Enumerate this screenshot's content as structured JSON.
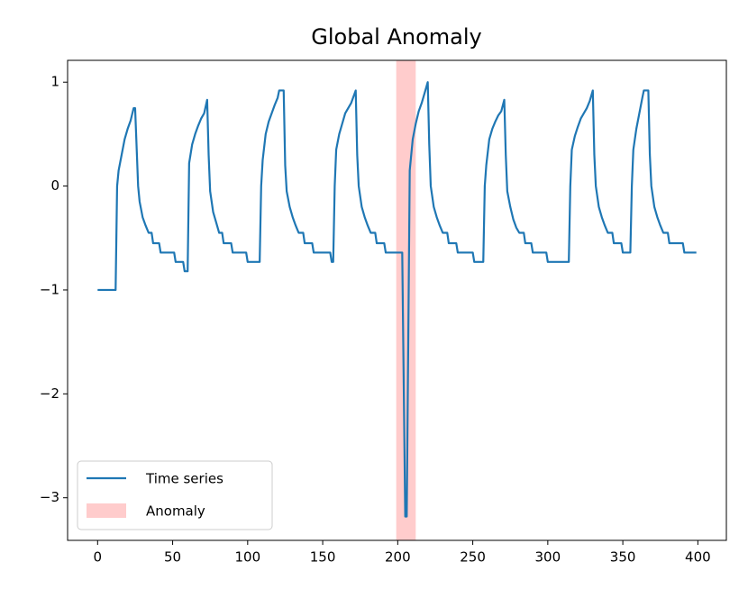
{
  "chart_data": {
    "type": "line",
    "title": "Global Anomaly",
    "x": [
      0,
      12,
      13,
      14,
      16,
      18,
      20,
      22,
      24,
      25,
      27,
      28,
      30,
      32,
      34,
      36,
      37,
      41,
      42,
      51,
      52,
      57,
      58,
      60,
      61,
      63,
      65,
      67,
      69,
      71,
      73,
      74,
      75,
      77,
      79,
      81,
      83,
      84,
      89,
      90,
      99,
      100,
      108,
      109,
      110,
      112,
      114,
      116,
      118,
      120,
      121,
      124,
      125,
      126,
      128,
      130,
      132,
      134,
      137,
      138,
      143,
      144,
      155,
      156,
      157,
      158,
      159,
      161,
      163,
      165,
      167,
      169,
      172,
      173,
      174,
      176,
      178,
      180,
      182,
      185,
      186,
      191,
      192,
      203,
      205,
      206,
      208,
      210,
      212,
      214,
      216,
      218,
      220,
      221,
      222,
      224,
      226,
      228,
      230,
      233,
      234,
      239,
      240,
      250,
      251,
      257,
      258,
      259,
      261,
      263,
      265,
      267,
      269,
      271,
      272,
      273,
      275,
      277,
      279,
      281,
      284,
      285,
      289,
      290,
      299,
      300,
      314,
      315,
      316,
      318,
      320,
      322,
      324,
      326,
      328,
      330,
      331,
      332,
      334,
      336,
      338,
      340,
      343,
      344,
      349,
      350,
      355,
      356,
      357,
      359,
      361,
      363,
      364,
      367,
      368,
      369,
      371,
      373,
      375,
      377,
      380,
      381,
      390,
      391,
      399
    ],
    "series": [
      {
        "name": "Time series",
        "color": "#1f77b4",
        "values": [
          -1,
          -1,
          0,
          0.15,
          0.3,
          0.45,
          0.55,
          0.63,
          0.75,
          0.75,
          0,
          -0.15,
          -0.3,
          -0.38,
          -0.45,
          -0.45,
          -0.55,
          -0.55,
          -0.64,
          -0.64,
          -0.73,
          -0.73,
          -0.82,
          -0.82,
          0.22,
          0.4,
          0.5,
          0.58,
          0.65,
          0.7,
          0.83,
          0.3,
          -0.05,
          -0.25,
          -0.35,
          -0.45,
          -0.45,
          -0.55,
          -0.55,
          -0.64,
          -0.64,
          -0.73,
          -0.73,
          0,
          0.25,
          0.5,
          0.62,
          0.7,
          0.78,
          0.85,
          0.92,
          0.92,
          0.2,
          -0.05,
          -0.2,
          -0.3,
          -0.38,
          -0.45,
          -0.45,
          -0.55,
          -0.55,
          -0.64,
          -0.64,
          -0.73,
          -0.73,
          0,
          0.35,
          0.5,
          0.6,
          0.7,
          0.75,
          0.8,
          0.92,
          0.3,
          0,
          -0.2,
          -0.3,
          -0.38,
          -0.45,
          -0.45,
          -0.55,
          -0.55,
          -0.64,
          -0.64,
          -3.18,
          -3.18,
          0.15,
          0.45,
          0.6,
          0.72,
          0.8,
          0.9,
          1.0,
          0.4,
          0,
          -0.2,
          -0.3,
          -0.38,
          -0.45,
          -0.45,
          -0.55,
          -0.55,
          -0.64,
          -0.64,
          -0.73,
          -0.73,
          0,
          0.2,
          0.45,
          0.55,
          0.62,
          0.68,
          0.72,
          0.83,
          0.3,
          -0.05,
          -0.2,
          -0.32,
          -0.4,
          -0.45,
          -0.45,
          -0.55,
          -0.55,
          -0.64,
          -0.64,
          -0.73,
          -0.73,
          0,
          0.35,
          0.48,
          0.57,
          0.65,
          0.7,
          0.75,
          0.82,
          0.92,
          0.3,
          0,
          -0.2,
          -0.3,
          -0.38,
          -0.45,
          -0.45,
          -0.55,
          -0.55,
          -0.64,
          -0.64,
          0,
          0.35,
          0.55,
          0.7,
          0.85,
          0.92,
          0.92,
          0.3,
          0,
          -0.2,
          -0.3,
          -0.38,
          -0.45,
          -0.45,
          -0.55,
          -0.55,
          -0.64,
          -0.64
        ]
      }
    ],
    "anomaly": {
      "name": "Anomaly",
      "color": "#ffcccc",
      "span": [
        199,
        212
      ]
    },
    "xlim": [
      -20,
      419
    ],
    "ylim": [
      -3.41,
      1.21
    ],
    "xticks": [
      0,
      50,
      100,
      150,
      200,
      250,
      300,
      350,
      400
    ],
    "yticks": [
      {
        "value": -3,
        "label": "−3"
      },
      {
        "value": -2,
        "label": "−2"
      },
      {
        "value": -1,
        "label": "−1"
      },
      0,
      1
    ],
    "legend": "lower left"
  }
}
